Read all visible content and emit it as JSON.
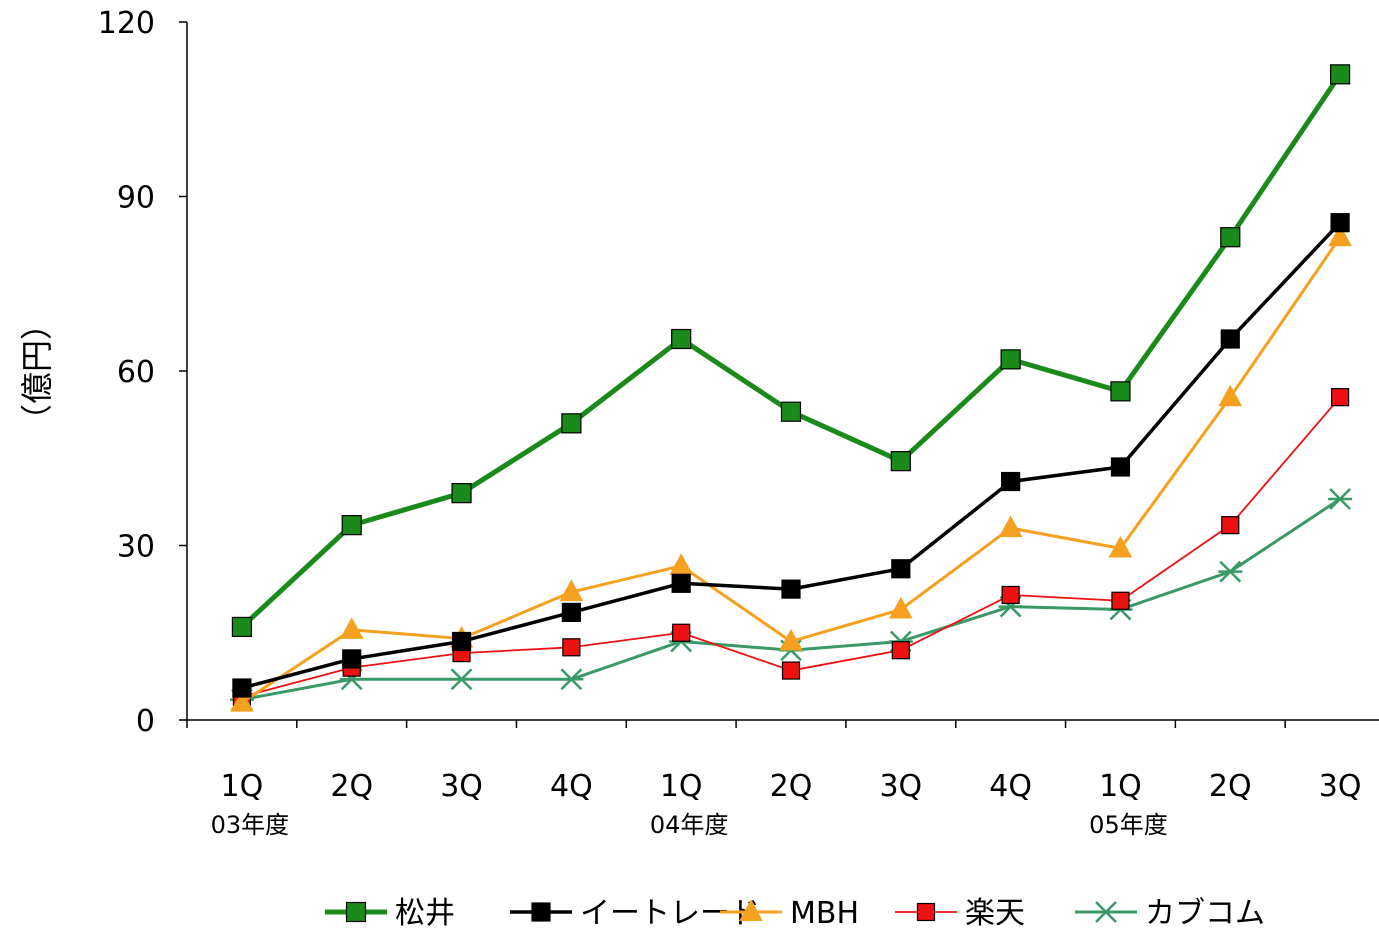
{
  "chart_data": {
    "type": "line",
    "title": "",
    "xlabel": "",
    "ylabel": "（億円）",
    "ylim": [
      0,
      120
    ],
    "yticks": [
      "0",
      "30",
      "60",
      "90",
      "120"
    ],
    "categories": [
      "1Q",
      "2Q",
      "3Q",
      "4Q",
      "1Q",
      "2Q",
      "3Q",
      "4Q",
      "1Q",
      "2Q",
      "3Q"
    ],
    "fiscal_year_labels": [
      "03年度",
      "04年度",
      "05年度"
    ],
    "grid": false,
    "legend_position": "bottom",
    "series": [
      {
        "name": "松井",
        "color": "#1a8a1a",
        "marker": "square",
        "values": [
          16,
          33.5,
          39,
          51,
          65.5,
          53,
          44.5,
          62,
          56.5,
          83,
          111
        ]
      },
      {
        "name": "イートレード",
        "color": "#000000",
        "marker": "square",
        "values": [
          5.5,
          10.5,
          13.5,
          18.5,
          23.5,
          22.5,
          26,
          41,
          43.5,
          65.5,
          85.5
        ]
      },
      {
        "name": "MBH",
        "color": "#f5a01f",
        "marker": "triangle",
        "values": [
          3,
          15.5,
          14,
          22,
          26.5,
          13.5,
          19,
          33,
          29.5,
          55.5,
          83
        ]
      },
      {
        "name": "楽天",
        "color": "#ee1111",
        "marker": "square",
        "values": [
          4,
          9,
          11.5,
          12.5,
          15,
          8.5,
          12,
          21.5,
          20.5,
          33.5,
          55.5
        ]
      },
      {
        "name": "カブコム",
        "color": "#3a9966",
        "marker": "asterisk",
        "values": [
          3.5,
          7,
          7,
          7,
          13.5,
          12,
          13.5,
          19.5,
          19,
          25.5,
          38
        ]
      }
    ]
  }
}
